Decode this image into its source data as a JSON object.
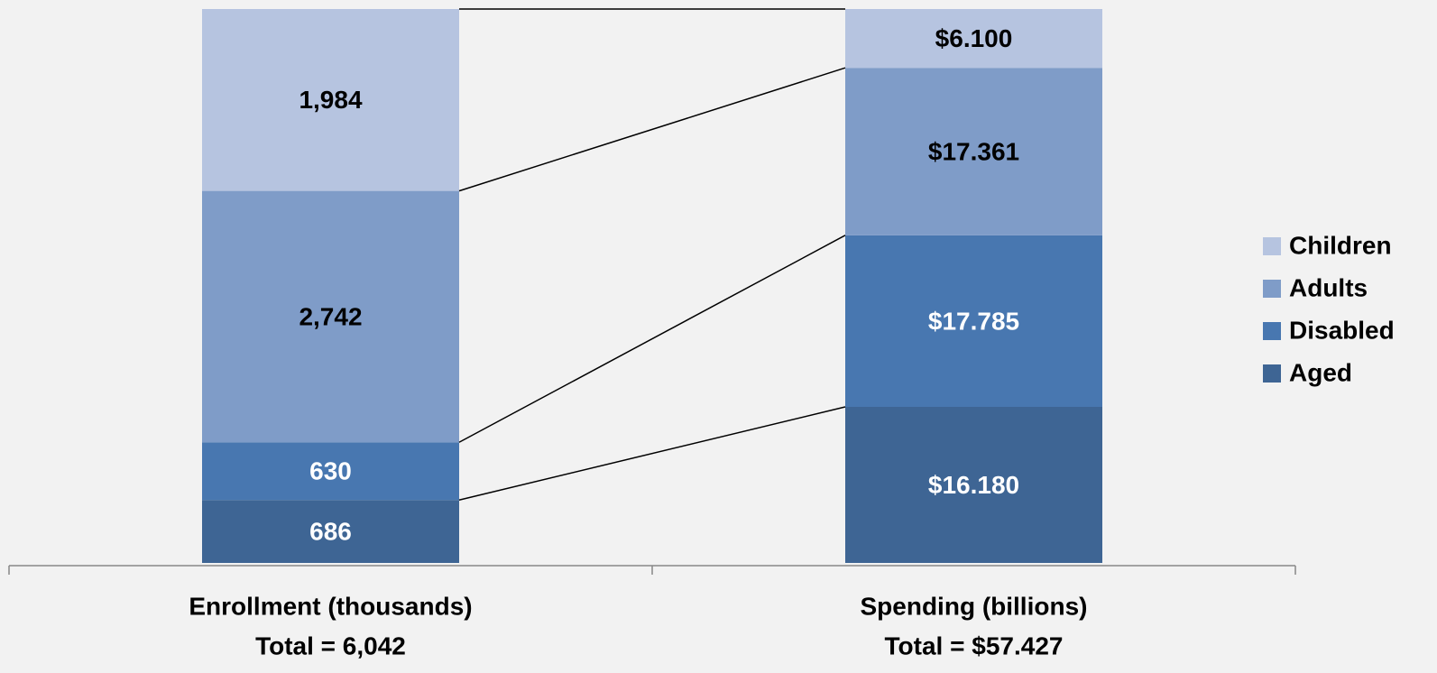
{
  "chart_data": {
    "type": "bar",
    "stacking": "percent",
    "categories": [
      "Enrollment (thousands)",
      "Spending (billions)"
    ],
    "category_totals": [
      "Total = 6,042",
      "Total = $57.427"
    ],
    "series": [
      {
        "name": "Aged",
        "color": "#3e6594",
        "label_color": "#ffffff",
        "values": [
          686,
          16.18
        ],
        "value_labels": [
          "686",
          "$16.180"
        ]
      },
      {
        "name": "Disabled",
        "color": "#4877b0",
        "label_color": "#ffffff",
        "values": [
          630,
          17.785
        ],
        "value_labels": [
          "630",
          "$17.785"
        ]
      },
      {
        "name": "Adults",
        "color": "#7f9cc8",
        "label_color": "#000000",
        "values": [
          2742,
          17.361
        ],
        "value_labels": [
          "2,742",
          "$17.361"
        ]
      },
      {
        "name": "Children",
        "color": "#b6c4e0",
        "label_color": "#000000",
        "values": [
          1984,
          6.1
        ],
        "value_labels": [
          "1,984",
          "$6.100"
        ]
      }
    ],
    "legend": "right",
    "connectors": true
  }
}
